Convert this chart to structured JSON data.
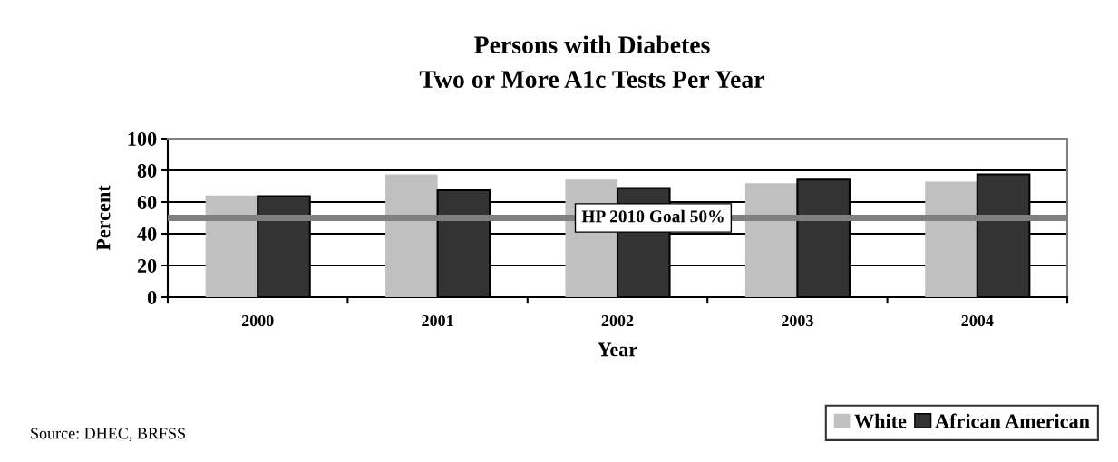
{
  "chart_data": {
    "type": "bar",
    "title": "Persons with Diabetes",
    "subtitle": "Two or More A1c Tests Per Year",
    "xlabel": "Year",
    "ylabel": "Percent",
    "categories": [
      "2000",
      "2001",
      "2002",
      "2003",
      "2004"
    ],
    "series": [
      {
        "name": "White",
        "color": "#c0c0c0",
        "values": [
          64.2,
          77.4,
          74.1,
          71.9,
          72.8
        ]
      },
      {
        "name": "African American",
        "color": "#333333",
        "values": [
          63.7,
          67.4,
          68.8,
          74.1,
          77.4
        ]
      }
    ],
    "ylim": [
      0,
      100
    ],
    "yticks": [
      0,
      20,
      40,
      60,
      80,
      100
    ],
    "grid": "y",
    "legend": "bottom right",
    "ref_lines": [
      {
        "axis": "y",
        "value": 50,
        "label": "HP 2010 Goal 50%",
        "color": "#808080"
      }
    ],
    "annotations": [
      "Source: DHEC, BRFSS"
    ]
  }
}
